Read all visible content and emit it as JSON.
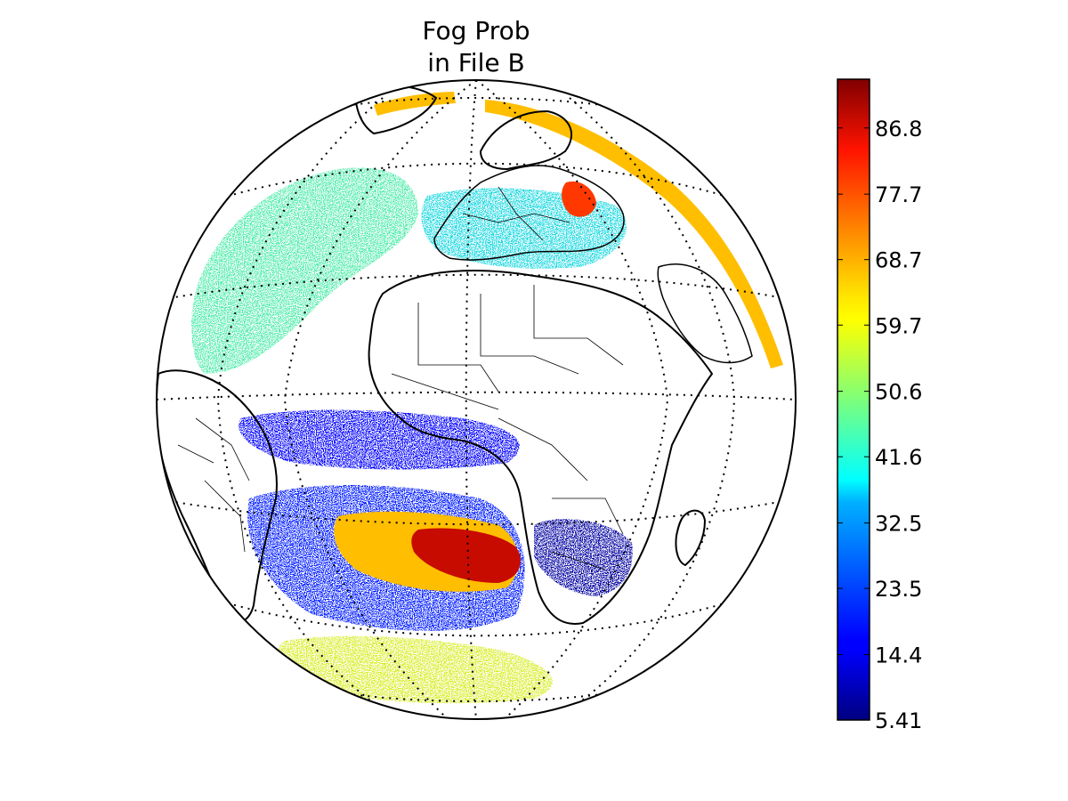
{
  "figure": {
    "title_lines": [
      "Fog Prob",
      "in File B"
    ]
  },
  "map": {
    "projection": "orthographic",
    "center_lon": 0,
    "center_lat": 0,
    "graticule": true,
    "coastlines": true,
    "country_borders": true,
    "field_name": "Fog Prob",
    "regions": [
      {
        "name": "south-atlantic-high",
        "level": 88
      },
      {
        "name": "south-atlantic-mid",
        "level": 66
      },
      {
        "name": "south-atlantic-cloud-band",
        "level": 18
      },
      {
        "name": "southern-ocean-band",
        "level": 58
      },
      {
        "name": "southern-africa-low",
        "level": 8
      },
      {
        "name": "tropical-atlantic-low",
        "level": 15
      },
      {
        "name": "north-atlantic-band",
        "level": 45
      },
      {
        "name": "europe-mixed",
        "level": 40
      },
      {
        "name": "russia-high",
        "level": 80
      },
      {
        "name": "limb-swath",
        "level": 66
      }
    ]
  },
  "colorbar": {
    "colormap": "jet",
    "min": 5.41,
    "max": 93.5,
    "ticks": [
      "5.41",
      "14.4",
      "23.5",
      "32.5",
      "41.6",
      "50.6",
      "59.7",
      "68.7",
      "77.7",
      "86.8"
    ],
    "colors": {
      "0.00": "#000080",
      "0.11": "#0000ff",
      "0.36": "#00ccff",
      "0.50": "#7dff7a",
      "0.64": "#ffe600",
      "0.89": "#ff1300",
      "1.00": "#800000"
    }
  }
}
